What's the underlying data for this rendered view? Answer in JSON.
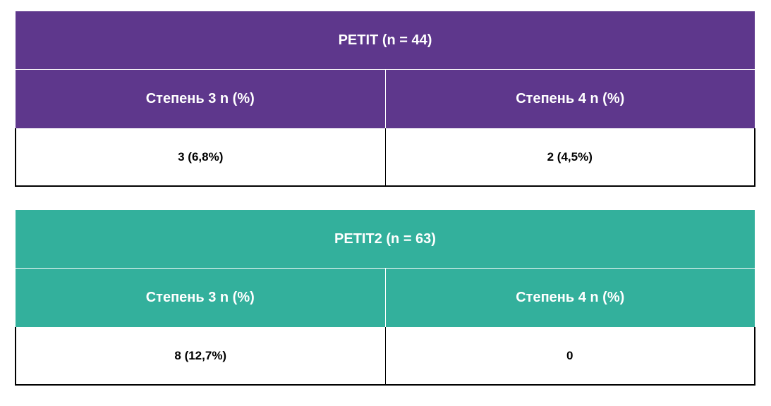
{
  "colors": {
    "table1_header": "#5e378c",
    "table2_header": "#33b09c",
    "header_text": "#ffffff",
    "cell_text": "#000000"
  },
  "tables": [
    {
      "title": "PETIT (n = 44)",
      "columns": [
        "Степень 3 n (%)",
        "Степень 4 n (%)"
      ],
      "rows": [
        [
          "3 (6,8%)",
          "2 (4,5%)"
        ]
      ]
    },
    {
      "title": "PETIT2 (n = 63)",
      "columns": [
        "Степень 3 n (%)",
        "Степень 4 n (%)"
      ],
      "rows": [
        [
          "8 (12,7%)",
          "0"
        ]
      ]
    }
  ]
}
